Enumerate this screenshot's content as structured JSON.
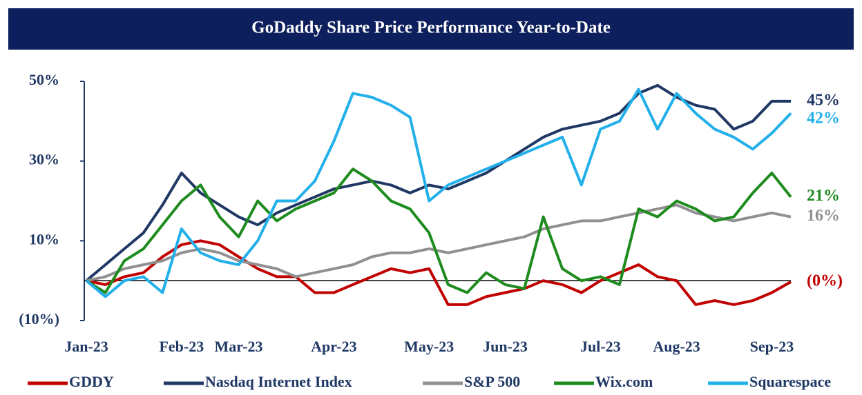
{
  "chart_data": {
    "type": "line",
    "title": "GoDaddy Share Price Performance Year-to-Date",
    "categories": [
      "Jan-23",
      null,
      null,
      null,
      null,
      "Feb-23",
      null,
      null,
      "Mar-23",
      null,
      null,
      null,
      null,
      "Apr-23",
      null,
      null,
      null,
      null,
      "May-23",
      null,
      null,
      null,
      "Jun-23",
      null,
      null,
      null,
      null,
      "Jul-23",
      null,
      null,
      null,
      "Aug-23",
      null,
      null,
      null,
      null,
      "Sep-23",
      null
    ],
    "ylim": [
      -10,
      50
    ],
    "yticks": [
      {
        "value": -10,
        "label": "(10%)"
      },
      {
        "value": 10,
        "label": "10%"
      },
      {
        "value": 30,
        "label": "30%"
      },
      {
        "value": 50,
        "label": "50%"
      }
    ],
    "legend": "bottom",
    "series": [
      {
        "name": "GDDY",
        "color": "#c00000",
        "values": [
          0,
          -1,
          1,
          2,
          6,
          9,
          10,
          9,
          6,
          3,
          1,
          1,
          -3,
          -3,
          -1,
          1,
          3,
          2,
          3,
          -6,
          -6,
          -4,
          -3,
          -2,
          0,
          -1,
          -3,
          0,
          2,
          4,
          1,
          0,
          -6,
          -5,
          -6,
          -5,
          -3,
          -0.3
        ],
        "value_labels": [
          null,
          null,
          null,
          null,
          null,
          null,
          null,
          null,
          null,
          null,
          null,
          null,
          null,
          null,
          null,
          null,
          null,
          null,
          null,
          null,
          null,
          null,
          null,
          null,
          null,
          null,
          null,
          null,
          null,
          null,
          null,
          null,
          null,
          null,
          null,
          null,
          null,
          "(0%)"
        ]
      },
      {
        "name": "Nasdaq Internet Index",
        "color": "#1f3864",
        "values": [
          0,
          4,
          8,
          12,
          19,
          27,
          22,
          19,
          16,
          14,
          17,
          19,
          21,
          23,
          24,
          25,
          24,
          22,
          24,
          23,
          25,
          27,
          30,
          33,
          36,
          38,
          39,
          40,
          42,
          47,
          49,
          46,
          44,
          43,
          38,
          40,
          45,
          45
        ],
        "value_labels": [
          null,
          null,
          null,
          null,
          null,
          null,
          null,
          null,
          null,
          null,
          null,
          null,
          null,
          null,
          null,
          null,
          null,
          null,
          null,
          null,
          null,
          null,
          null,
          null,
          null,
          null,
          null,
          null,
          null,
          null,
          null,
          null,
          null,
          null,
          null,
          null,
          null,
          "45%"
        ]
      },
      {
        "name": "S&P 500",
        "color": "#909090",
        "values": [
          0,
          1,
          3,
          4,
          5,
          7,
          8,
          7,
          5,
          4,
          3,
          1,
          2,
          3,
          4,
          6,
          7,
          7,
          8,
          7,
          8,
          9,
          10,
          11,
          13,
          14,
          15,
          15,
          16,
          17,
          18,
          19,
          17,
          16,
          15,
          16,
          17,
          16
        ],
        "value_labels": [
          null,
          null,
          null,
          null,
          null,
          null,
          null,
          null,
          null,
          null,
          null,
          null,
          null,
          null,
          null,
          null,
          null,
          null,
          null,
          null,
          null,
          null,
          null,
          null,
          null,
          null,
          null,
          null,
          null,
          null,
          null,
          null,
          null,
          null,
          null,
          null,
          null,
          "16%"
        ]
      },
      {
        "name": "Wix.com",
        "color": "#1e8b1e",
        "values": [
          0,
          -3,
          5,
          8,
          14,
          20,
          24,
          16,
          11,
          20,
          15,
          18,
          20,
          22,
          28,
          25,
          20,
          18,
          12,
          -1,
          -3,
          2,
          -1,
          -2,
          16,
          3,
          0,
          1,
          -1,
          18,
          16,
          20,
          18,
          15,
          16,
          22,
          27,
          21
        ],
        "value_labels": [
          null,
          null,
          null,
          null,
          null,
          null,
          null,
          null,
          null,
          null,
          null,
          null,
          null,
          null,
          null,
          null,
          null,
          null,
          null,
          null,
          null,
          null,
          null,
          null,
          null,
          null,
          null,
          null,
          null,
          null,
          null,
          null,
          null,
          null,
          null,
          null,
          null,
          "21%"
        ]
      },
      {
        "name": "Squarespace",
        "color": "#22b0ea",
        "values": [
          0,
          -4,
          0,
          1,
          -3,
          13,
          7,
          5,
          4,
          10,
          20,
          20,
          25,
          35,
          47,
          46,
          44,
          41,
          20,
          24,
          26,
          28,
          30,
          32,
          34,
          36,
          24,
          38,
          40,
          48,
          38,
          47,
          42,
          38,
          36,
          33,
          37,
          42
        ],
        "value_labels": [
          null,
          null,
          null,
          null,
          null,
          null,
          null,
          null,
          null,
          null,
          null,
          null,
          null,
          null,
          null,
          null,
          null,
          null,
          null,
          null,
          null,
          null,
          null,
          null,
          null,
          null,
          null,
          null,
          null,
          null,
          null,
          null,
          null,
          null,
          null,
          null,
          null,
          "42%"
        ]
      }
    ]
  }
}
